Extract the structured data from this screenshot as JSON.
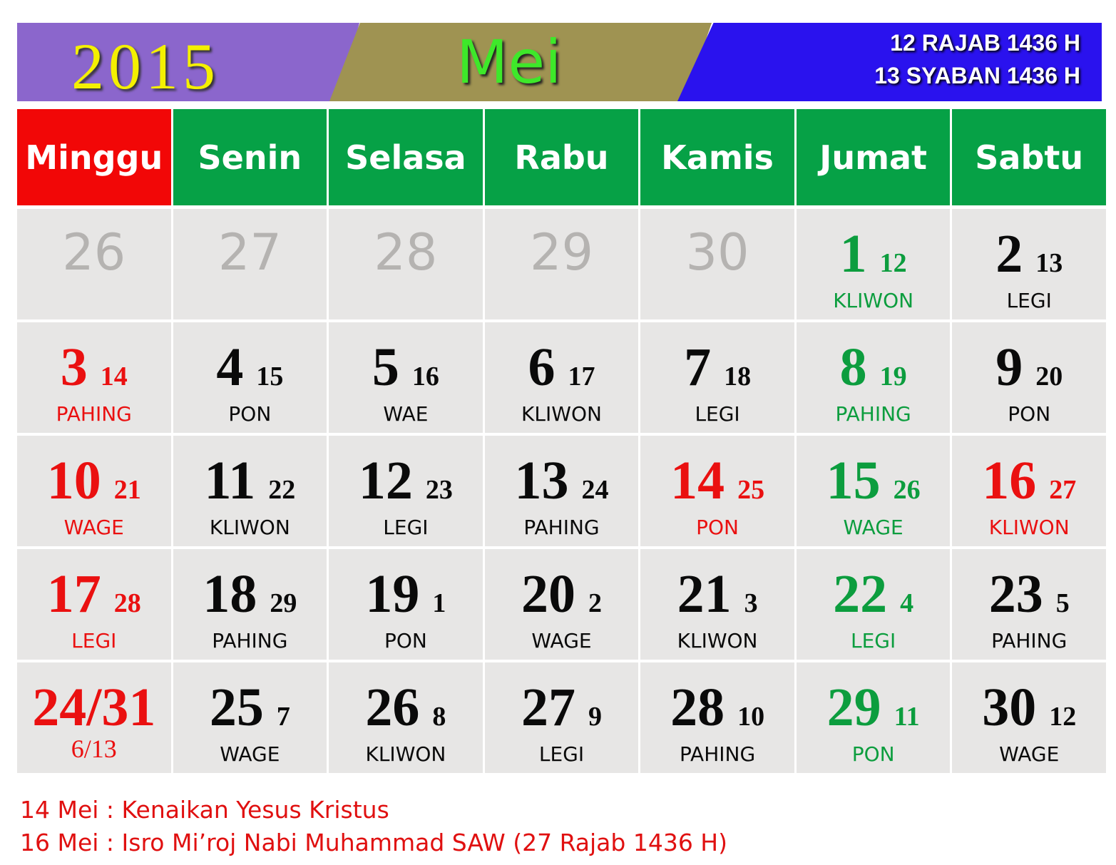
{
  "header": {
    "year": "2015",
    "month": "Mei",
    "hijri_lines": [
      "12 RAJAB 1436 H",
      "13 SYABAN 1436 H"
    ],
    "colors": {
      "year_band": "#8b66cc",
      "month_band": "#9f9352",
      "hijri_band": "#2a12ee"
    }
  },
  "weekdays": [
    {
      "label": "Minggu",
      "color": "red"
    },
    {
      "label": "Senin",
      "color": "green"
    },
    {
      "label": "Selasa",
      "color": "green"
    },
    {
      "label": "Rabu",
      "color": "green"
    },
    {
      "label": "Kamis",
      "color": "green"
    },
    {
      "label": "Jumat",
      "color": "green"
    },
    {
      "label": "Sabtu",
      "color": "green"
    }
  ],
  "weeks": [
    [
      {
        "day": "26",
        "hijri": "",
        "pasaran": "",
        "color": "gray"
      },
      {
        "day": "27",
        "hijri": "",
        "pasaran": "",
        "color": "gray"
      },
      {
        "day": "28",
        "hijri": "",
        "pasaran": "",
        "color": "gray"
      },
      {
        "day": "29",
        "hijri": "",
        "pasaran": "",
        "color": "gray"
      },
      {
        "day": "30",
        "hijri": "",
        "pasaran": "",
        "color": "gray"
      },
      {
        "day": "1",
        "hijri": "12",
        "pasaran": "KLIWON",
        "color": "green"
      },
      {
        "day": "2",
        "hijri": "13",
        "pasaran": "LEGI",
        "color": "black"
      }
    ],
    [
      {
        "day": "3",
        "hijri": "14",
        "pasaran": "PAHING",
        "color": "red"
      },
      {
        "day": "4",
        "hijri": "15",
        "pasaran": "PON",
        "color": "black"
      },
      {
        "day": "5",
        "hijri": "16",
        "pasaran": "WAE",
        "color": "black"
      },
      {
        "day": "6",
        "hijri": "17",
        "pasaran": "KLIWON",
        "color": "black"
      },
      {
        "day": "7",
        "hijri": "18",
        "pasaran": "LEGI",
        "color": "black"
      },
      {
        "day": "8",
        "hijri": "19",
        "pasaran": "PAHING",
        "color": "green"
      },
      {
        "day": "9",
        "hijri": "20",
        "pasaran": "PON",
        "color": "black"
      }
    ],
    [
      {
        "day": "10",
        "hijri": "21",
        "pasaran": "WAGE",
        "color": "red"
      },
      {
        "day": "11",
        "hijri": "22",
        "pasaran": "KLIWON",
        "color": "black"
      },
      {
        "day": "12",
        "hijri": "23",
        "pasaran": "LEGI",
        "color": "black"
      },
      {
        "day": "13",
        "hijri": "24",
        "pasaran": "PAHING",
        "color": "black"
      },
      {
        "day": "14",
        "hijri": "25",
        "pasaran": "PON",
        "color": "red"
      },
      {
        "day": "15",
        "hijri": "26",
        "pasaran": "WAGE",
        "color": "green"
      },
      {
        "day": "16",
        "hijri": "27",
        "pasaran": "KLIWON",
        "color": "red"
      }
    ],
    [
      {
        "day": "17",
        "hijri": "28",
        "pasaran": "LEGI",
        "color": "red"
      },
      {
        "day": "18",
        "hijri": "29",
        "pasaran": "PAHING",
        "color": "black"
      },
      {
        "day": "19",
        "hijri": "1",
        "pasaran": "PON",
        "color": "black"
      },
      {
        "day": "20",
        "hijri": "2",
        "pasaran": "WAGE",
        "color": "black"
      },
      {
        "day": "21",
        "hijri": "3",
        "pasaran": "KLIWON",
        "color": "black"
      },
      {
        "day": "22",
        "hijri": "4",
        "pasaran": "LEGI",
        "color": "green"
      },
      {
        "day": "23",
        "hijri": "5",
        "pasaran": "PAHING",
        "color": "black"
      }
    ],
    [
      {
        "day": "24/31",
        "hijri": "",
        "pasaran": "6/13",
        "color": "red"
      },
      {
        "day": "25",
        "hijri": "7",
        "pasaran": "WAGE",
        "color": "black"
      },
      {
        "day": "26",
        "hijri": "8",
        "pasaran": "KLIWON",
        "color": "black"
      },
      {
        "day": "27",
        "hijri": "9",
        "pasaran": "LEGI",
        "color": "black"
      },
      {
        "day": "28",
        "hijri": "10",
        "pasaran": "PAHING",
        "color": "black"
      },
      {
        "day": "29",
        "hijri": "11",
        "pasaran": "PON",
        "color": "green"
      },
      {
        "day": "30",
        "hijri": "12",
        "pasaran": "WAGE",
        "color": "black"
      }
    ]
  ],
  "notes": [
    "14 Mei : Kenaikan Yesus Kristus",
    "16 Mei : Isro Mi’roj Nabi Muhammad SAW (27 Rajab 1436 H)"
  ]
}
